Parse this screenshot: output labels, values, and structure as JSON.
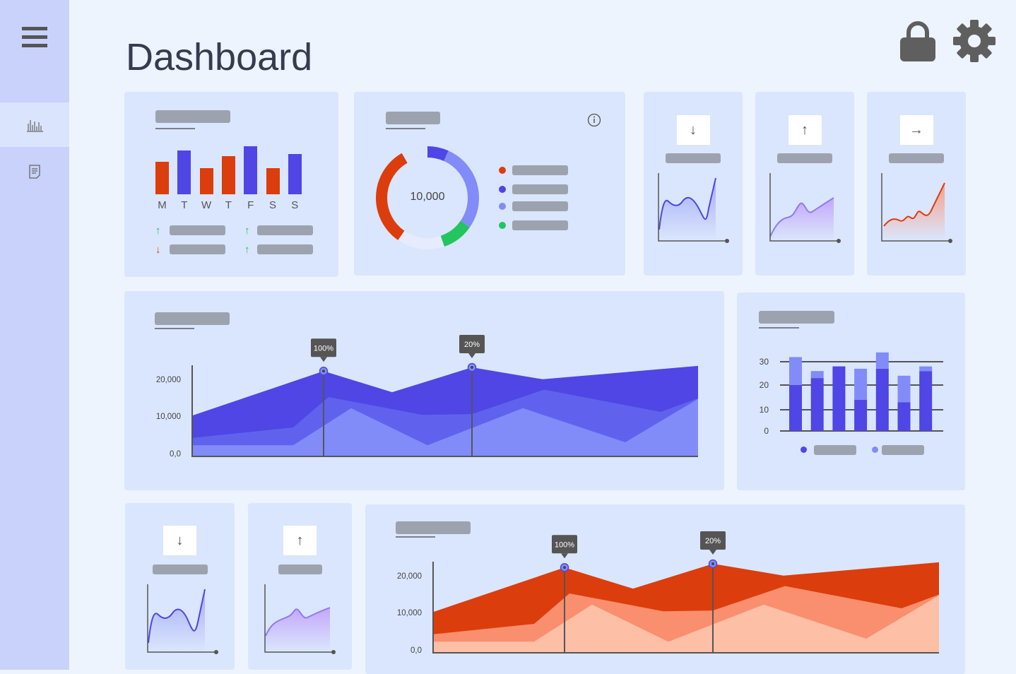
{
  "header": {
    "title": "Dashboard",
    "icons": [
      "lock-icon",
      "gear-icon"
    ]
  },
  "sidebar": {
    "items": [
      {
        "icon": "menu-icon"
      },
      {
        "icon": "bar-chart-icon",
        "selected": true
      },
      {
        "icon": "document-icon"
      }
    ]
  },
  "colors": {
    "dark_blue": "#4f46e5",
    "mid_blue": "#6366f1",
    "light_blue": "#818cf8",
    "red": "#dc3d0c",
    "orange": "#f98f6e",
    "peach": "#fdbfa5",
    "green": "#22c55e",
    "card": "#dae6fd"
  },
  "weekly_card": {
    "days": [
      "M",
      "T",
      "W",
      "T",
      "F",
      "S",
      "S"
    ],
    "values": [
      46,
      62,
      37,
      54,
      68,
      37,
      57
    ],
    "bar_colors": [
      "red",
      "blue",
      "red",
      "red",
      "blue",
      "red",
      "blue"
    ],
    "trends": [
      "up",
      "up",
      "down",
      "up"
    ]
  },
  "donut_card": {
    "center_label": "10,000",
    "segments": [
      {
        "color": "#4f46e5",
        "pct": 15
      },
      {
        "color": "#818cf8",
        "pct": 28
      },
      {
        "color": "#22c55e",
        "pct": 10
      },
      {
        "color": "#e6ebfd",
        "pct": 15
      },
      {
        "color": "#dc3d0c",
        "pct": 32
      }
    ],
    "legend_colors": [
      "#dc3d0c",
      "#4f46e5",
      "#818cf8",
      "#22c55e"
    ],
    "info_icon": "info-icon"
  },
  "mini_cards": [
    {
      "icon": "arrow-down-icon",
      "glyph": "↓"
    },
    {
      "icon": "arrow-up-icon",
      "glyph": "↑"
    },
    {
      "icon": "arrow-right-icon",
      "glyph": "→"
    },
    {
      "icon": "arrow-down-icon",
      "glyph": "↓"
    },
    {
      "icon": "arrow-up-icon",
      "glyph": "↑"
    }
  ],
  "chart_data": [
    {
      "type": "area",
      "yticks": [
        "20,000",
        "10,000",
        "0,0"
      ],
      "ylim": [
        0,
        25000
      ],
      "series": [
        {
          "values": [
            11000,
            23000,
            17300,
            24000,
            20800,
            24400
          ]
        },
        {
          "values": [
            5000,
            7800,
            16000,
            11200,
            11400,
            18000,
            12000,
            15700
          ]
        },
        {
          "values": [
            3000,
            3000,
            13000,
            3000,
            13000,
            3800,
            15500
          ]
        }
      ],
      "markers": [
        {
          "label": "100%"
        },
        {
          "label": "20%"
        }
      ]
    },
    {
      "type": "bar",
      "stacked": true,
      "yticks": [
        "30",
        "20",
        "10",
        "0"
      ],
      "ylim": [
        0,
        30
      ],
      "series": [
        {
          "values": [
            20,
            23,
            28,
            14,
            27,
            13,
            26
          ]
        },
        {
          "values": [
            12,
            3,
            0,
            13,
            7,
            11,
            2
          ]
        }
      ],
      "legend": "bottom"
    },
    {
      "type": "area",
      "yticks": [
        "20,000",
        "10,000",
        "0,0"
      ],
      "ylim": [
        0,
        25000
      ],
      "series": [
        {
          "values": [
            11000,
            23000,
            17300,
            24000,
            20800,
            24400
          ]
        },
        {
          "values": [
            5000,
            7800,
            16000,
            11200,
            11400,
            18000,
            12000,
            15700
          ]
        },
        {
          "values": [
            3000,
            3000,
            13000,
            3000,
            13000,
            3800,
            15500
          ]
        }
      ],
      "markers": [
        {
          "label": "100%"
        },
        {
          "label": "20%"
        }
      ]
    }
  ]
}
